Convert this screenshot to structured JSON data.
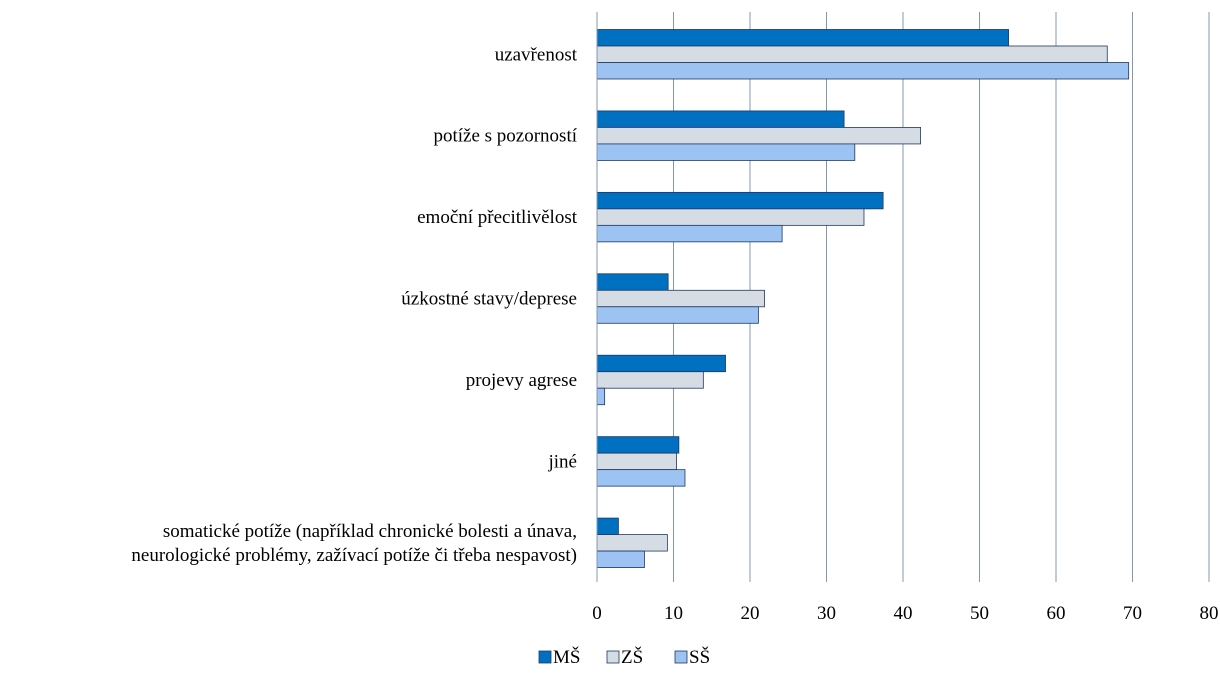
{
  "chart_data": {
    "type": "bar",
    "orientation": "horizontal",
    "title": "",
    "xlabel": "",
    "ylabel": "",
    "xlim": [
      0,
      80
    ],
    "ticks": [
      "0",
      "10",
      "20",
      "30",
      "40",
      "50",
      "60",
      "70",
      "80"
    ],
    "grid": "vertical",
    "legend_position": "bottom",
    "categories": [
      [
        "uzavřenost"
      ],
      [
        "potíže s pozorností"
      ],
      [
        "emoční přecitlivělost"
      ],
      [
        "úzkostné stavy/deprese"
      ],
      [
        "projevy agrese"
      ],
      [
        "jiné"
      ],
      [
        "somatické potíže (například chronické bolesti a únava,",
        "neurologické problémy, zažívací potíže či třeba nespavost)"
      ]
    ],
    "series": [
      {
        "name": "MŠ",
        "color": "#0070C0",
        "values": [
          53.8,
          32.3,
          37.4,
          9.3,
          16.8,
          10.7,
          2.8
        ]
      },
      {
        "name": "ZŠ",
        "color": "#D6DCE4",
        "values": [
          66.7,
          42.3,
          34.9,
          21.9,
          13.9,
          10.4,
          9.2
        ]
      },
      {
        "name": "SŠ",
        "color": "#9DC3F2",
        "values": [
          69.5,
          33.7,
          24.2,
          21.1,
          1.0,
          11.5,
          6.2
        ]
      }
    ]
  }
}
